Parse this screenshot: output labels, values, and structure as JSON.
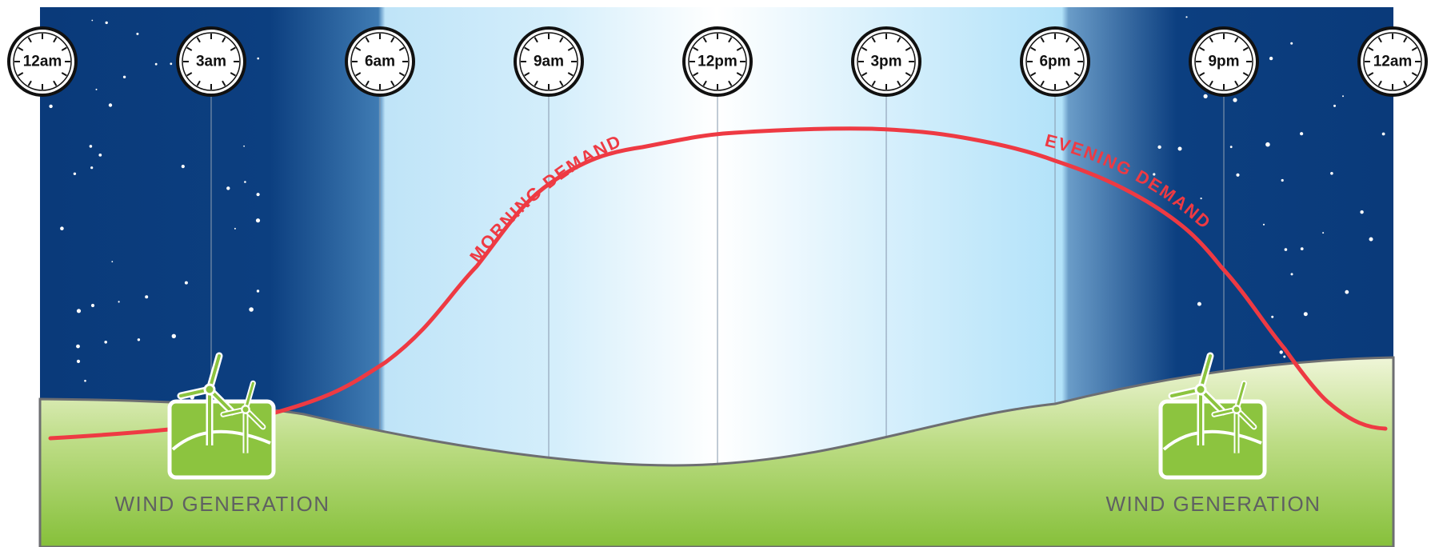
{
  "clocks": [
    "12am",
    "3am",
    "6am",
    "9am",
    "12pm",
    "3pm",
    "6pm",
    "9pm",
    "12am"
  ],
  "annotations": {
    "morning": "MORNING DEMAND",
    "evening": "EVENING DEMAND"
  },
  "wind_labels": [
    "WIND GENERATION",
    "WIND GENERATION"
  ]
}
